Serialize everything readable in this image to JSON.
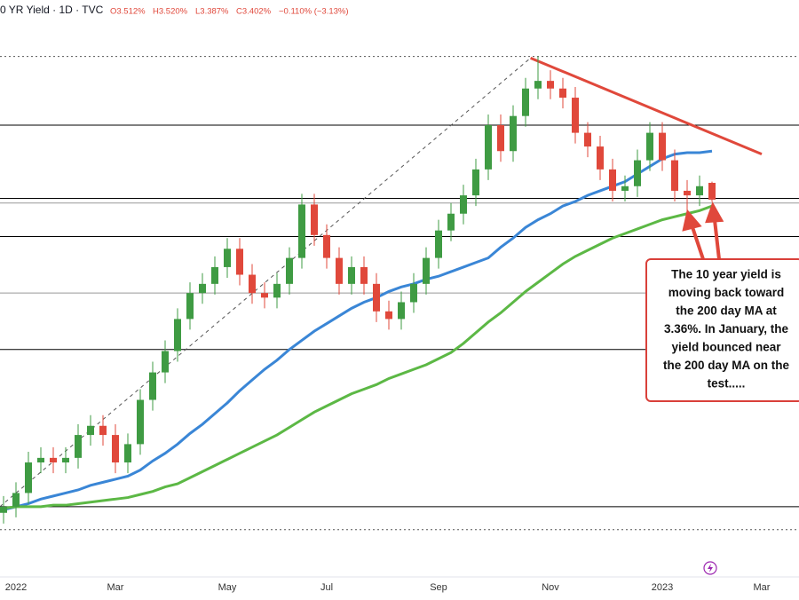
{
  "chart_data": {
    "type": "candlestick",
    "header": {
      "symbol": "0 YR Yield · 1D · TVC",
      "open": "O3.512%",
      "high": "H3.520%",
      "low": "L3.387%",
      "close": "C3.402%",
      "change": "−0.110% (−3.13%)"
    },
    "categories": [
      null,
      "2022",
      null,
      null,
      null,
      null,
      null,
      null,
      null,
      "Mar",
      null,
      null,
      null,
      null,
      null,
      null,
      null,
      null,
      "May",
      null,
      null,
      null,
      null,
      null,
      null,
      null,
      "Jul",
      null,
      null,
      null,
      null,
      null,
      null,
      null,
      null,
      "Sep",
      null,
      null,
      null,
      null,
      null,
      null,
      null,
      null,
      "Nov",
      null,
      null,
      null,
      null,
      null,
      null,
      null,
      null,
      "2023",
      null,
      null,
      null,
      null,
      null,
      null,
      null,
      "Mar"
    ],
    "open": [
      1.35,
      1.39,
      1.48,
      1.68,
      1.71,
      1.68,
      1.71,
      1.86,
      1.92,
      1.86,
      1.68,
      1.8,
      2.09,
      2.27,
      2.41,
      2.62,
      2.79,
      2.85,
      2.96,
      3.08,
      2.91,
      2.79,
      2.76,
      2.85,
      3.02,
      3.37,
      3.17,
      3.02,
      2.85,
      2.96,
      2.85,
      2.67,
      2.62,
      2.73,
      2.85,
      3.02,
      3.2,
      3.31,
      3.43,
      3.6,
      3.89,
      3.72,
      3.95,
      4.13,
      4.18,
      4.13,
      4.07,
      3.84,
      3.75,
      3.6,
      3.46,
      3.49,
      3.66,
      3.84,
      3.66,
      3.46,
      3.43,
      3.512,
      null,
      null,
      null,
      null
    ],
    "high": [
      1.46,
      1.55,
      1.75,
      1.78,
      1.78,
      1.78,
      1.93,
      1.99,
      1.99,
      1.93,
      1.87,
      2.16,
      2.34,
      2.48,
      2.69,
      2.86,
      2.92,
      3.03,
      3.15,
      3.15,
      2.98,
      2.86,
      2.92,
      3.09,
      3.44,
      3.44,
      3.24,
      3.09,
      3.03,
      3.03,
      2.92,
      2.74,
      2.8,
      2.92,
      3.09,
      3.27,
      3.38,
      3.5,
      3.67,
      3.96,
      3.96,
      4.02,
      4.2,
      4.34,
      4.25,
      4.2,
      4.14,
      3.91,
      3.82,
      3.67,
      3.56,
      3.73,
      3.91,
      3.91,
      3.73,
      3.53,
      3.56,
      3.52,
      null,
      null,
      null,
      null
    ],
    "low": [
      1.28,
      1.32,
      1.41,
      1.61,
      1.61,
      1.61,
      1.64,
      1.79,
      1.79,
      1.61,
      1.61,
      1.73,
      2.02,
      2.2,
      2.34,
      2.55,
      2.72,
      2.78,
      2.89,
      2.84,
      2.72,
      2.69,
      2.69,
      2.78,
      2.95,
      3.1,
      2.95,
      2.78,
      2.78,
      2.78,
      2.6,
      2.55,
      2.55,
      2.66,
      2.78,
      2.95,
      3.13,
      3.24,
      3.36,
      3.53,
      3.65,
      3.65,
      3.88,
      4.06,
      4.06,
      4.0,
      3.77,
      3.68,
      3.53,
      3.39,
      3.39,
      3.42,
      3.59,
      3.59,
      3.39,
      3.33,
      3.36,
      3.387,
      null,
      null,
      null,
      null
    ],
    "close": [
      1.39,
      1.48,
      1.68,
      1.71,
      1.68,
      1.71,
      1.86,
      1.92,
      1.86,
      1.68,
      1.8,
      2.09,
      2.27,
      2.41,
      2.62,
      2.79,
      2.85,
      2.96,
      3.08,
      2.91,
      2.79,
      2.76,
      2.85,
      3.02,
      3.37,
      3.17,
      3.02,
      2.85,
      2.96,
      2.85,
      2.67,
      2.62,
      2.73,
      2.85,
      3.02,
      3.2,
      3.31,
      3.43,
      3.6,
      3.89,
      3.72,
      3.95,
      4.13,
      4.18,
      4.13,
      4.07,
      3.84,
      3.75,
      3.6,
      3.46,
      3.49,
      3.66,
      3.84,
      3.66,
      3.46,
      3.43,
      3.49,
      3.402,
      null,
      null,
      null,
      null
    ],
    "up_color": "#3f9b43",
    "down_color": "#e0483b",
    "series": [
      {
        "color": "#3a86d6",
        "values": [
          1.37,
          1.39,
          1.41,
          1.44,
          1.46,
          1.48,
          1.5,
          1.53,
          1.55,
          1.57,
          1.59,
          1.63,
          1.69,
          1.74,
          1.8,
          1.87,
          1.93,
          2.0,
          2.07,
          2.15,
          2.22,
          2.29,
          2.35,
          2.42,
          2.48,
          2.54,
          2.59,
          2.64,
          2.69,
          2.73,
          2.76,
          2.8,
          2.83,
          2.85,
          2.88,
          2.9,
          2.93,
          2.96,
          2.99,
          3.02,
          3.09,
          3.15,
          3.22,
          3.27,
          3.31,
          3.36,
          3.39,
          3.43,
          3.46,
          3.49,
          3.52,
          3.57,
          3.62,
          3.67,
          3.7,
          3.71,
          3.71,
          3.72,
          null,
          null,
          null,
          null
        ]
      },
      {
        "color": "#5cb845",
        "values": [
          1.38,
          1.39,
          1.39,
          1.39,
          1.4,
          1.4,
          1.41,
          1.42,
          1.43,
          1.44,
          1.45,
          1.47,
          1.49,
          1.52,
          1.54,
          1.58,
          1.62,
          1.66,
          1.7,
          1.74,
          1.78,
          1.82,
          1.86,
          1.91,
          1.96,
          2.01,
          2.05,
          2.09,
          2.13,
          2.16,
          2.19,
          2.23,
          2.26,
          2.29,
          2.32,
          2.36,
          2.4,
          2.46,
          2.53,
          2.6,
          2.66,
          2.73,
          2.8,
          2.86,
          2.92,
          2.98,
          3.03,
          3.07,
          3.11,
          3.15,
          3.18,
          3.21,
          3.24,
          3.27,
          3.29,
          3.31,
          3.33,
          3.36,
          null,
          null,
          null,
          null
        ]
      }
    ],
    "ylim": [
      0.93,
      4.71
    ],
    "levels": [
      {
        "value": 4.34,
        "style": "dotted",
        "color": "#555555"
      },
      {
        "value": 3.89,
        "style": "solid",
        "color": "#000000"
      },
      {
        "value": 3.41,
        "style": "solid",
        "color": "#000000"
      },
      {
        "value": 3.38,
        "style": "solid",
        "color": "#999999"
      },
      {
        "value": 3.16,
        "style": "solid",
        "color": "#000000"
      },
      {
        "value": 2.79,
        "style": "solid",
        "color": "#999999"
      },
      {
        "value": 2.42,
        "style": "solid",
        "color": "#000000"
      },
      {
        "value": 1.39,
        "style": "solid",
        "color": "#000000"
      },
      {
        "value": 1.24,
        "style": "dotted",
        "color": "#555555"
      }
    ],
    "trendlines": [
      {
        "from": [
          -0.3,
          1.39
        ],
        "to": [
          42.4,
          4.33
        ],
        "style": "dashed",
        "color": "#555555"
      },
      {
        "from": [
          42.4,
          4.33
        ],
        "to": [
          61,
          3.7
        ],
        "style": "solid",
        "color": "#e0483b"
      }
    ],
    "annotation": [
      "The 10 year yield is",
      "moving back toward",
      "the 200 day MA at",
      "3.36%. In January, the",
      "yield bounced near",
      "the 200 day MA on the",
      "test....."
    ]
  }
}
